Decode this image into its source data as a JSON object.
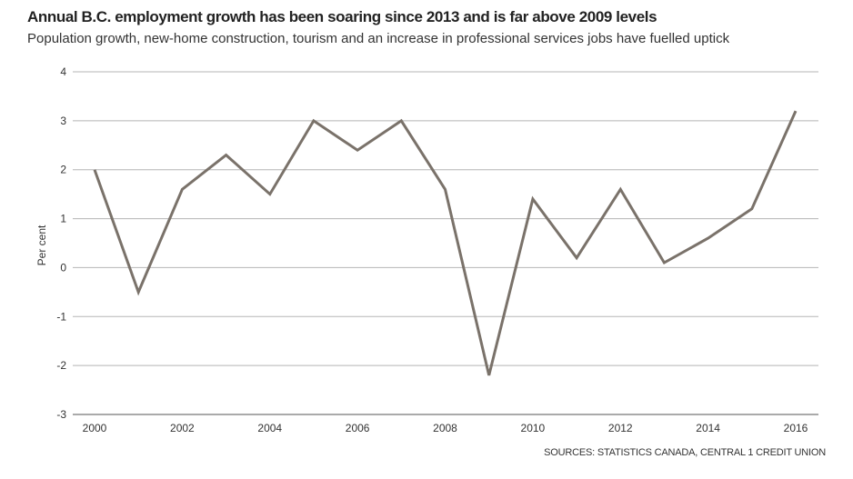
{
  "chart_data": {
    "type": "line",
    "title": "Annual B.C. employment growth has been soaring since 2013 and is far above 2009 levels",
    "subtitle": "Population growth, new-home construction, tourism and an increase in professional services jobs have fuelled uptick",
    "ylabel": "Per cent",
    "xlabel": "",
    "x": [
      2000,
      2001,
      2002,
      2003,
      2004,
      2005,
      2006,
      2007,
      2008,
      2009,
      2010,
      2011,
      2012,
      2013,
      2014,
      2015,
      2016
    ],
    "series": [
      {
        "values": [
          2.0,
          -0.5,
          1.6,
          2.3,
          1.5,
          3.0,
          2.4,
          3.0,
          1.6,
          -2.2,
          1.4,
          0.2,
          1.6,
          0.1,
          0.6,
          1.2,
          3.2
        ]
      }
    ],
    "xticks": [
      "2000",
      "2002",
      "2004",
      "2006",
      "2008",
      "2010",
      "2012",
      "2014",
      "2016"
    ],
    "yticks": [
      "4",
      "3",
      "2",
      "1",
      "0",
      "-1",
      "-2",
      "-3"
    ],
    "xlim": [
      2000,
      2016
    ],
    "ylim": [
      -3,
      4
    ],
    "grid": true,
    "line_color": "#7a726a",
    "grid_color": "#b5b5b5",
    "source": "SOURCES: STATISTICS CANADA, CENTRAL 1 CREDIT UNION"
  }
}
